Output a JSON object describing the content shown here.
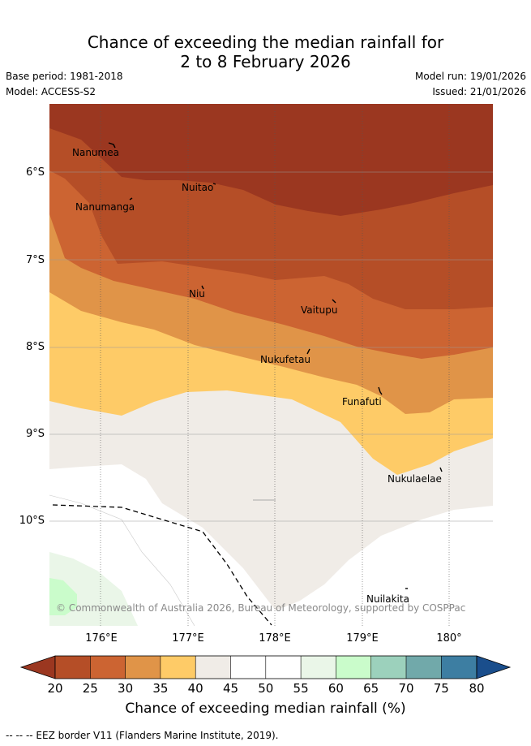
{
  "title": {
    "line1": "Chance of exceeding the median rainfall for",
    "line2": "2 to 8 February 2026"
  },
  "meta": {
    "base_period": "Base period: 1981-2018",
    "model": "Model: ACCESS-S2",
    "model_run": "Model run: 19/01/2026",
    "issued": "Issued: 21/01/2026"
  },
  "map": {
    "latitude_labels": [
      "6°S",
      "7°S",
      "8°S",
      "9°S",
      "10°S"
    ],
    "longitude_labels": [
      "176°E",
      "177°E",
      "178°E",
      "179°E",
      "180°"
    ],
    "places": [
      "Nanumea",
      "Nuitao",
      "Nanumanga",
      "Niu",
      "Vaitupu",
      "Nukufetau",
      "Funafuti",
      "Nukulaelae",
      "Nuilakita"
    ],
    "copyright": "© Commonwealth of Australia 2026, Bureau of Meteorology, supported by COSPPac"
  },
  "colorbar": {
    "ticks": [
      "20",
      "25",
      "30",
      "35",
      "40",
      "45",
      "50",
      "55",
      "60",
      "65",
      "70",
      "75",
      "80"
    ],
    "colors": [
      "#b54e27",
      "#cc6432",
      "#e09448",
      "#fecb67",
      "#f0ece7",
      "#ffffff",
      "#ffffff",
      "#eaf6e8",
      "#cafccb",
      "#9cd1bc",
      "#71a9aa",
      "#3d7ea2"
    ],
    "under_color": "#9b3720",
    "over_color": "#1a4e8c",
    "label": "Chance of exceeding median rainfall (%)"
  },
  "footer": "-- -- -- EEZ border V11 (Flanders Marine Institute, 2019)."
}
